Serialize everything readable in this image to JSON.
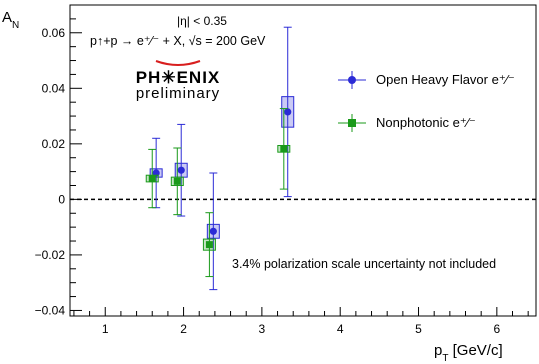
{
  "chart_data": {
    "type": "scatter",
    "title": "",
    "xlabel": "p_T [GeV/c]",
    "ylabel": "A_N",
    "xlim": [
      0.55,
      6.5
    ],
    "ylim": [
      -0.042,
      0.07
    ],
    "xticks": [
      1,
      2,
      3,
      4,
      5,
      6
    ],
    "yticks": [
      -0.04,
      -0.02,
      0,
      0.02,
      0.04,
      0.06
    ],
    "ytick_labels": [
      "−0.04",
      "−0.02",
      "0",
      "0.02",
      "0.04",
      "0.06"
    ],
    "reference_line": {
      "y": 0,
      "style": "dashed"
    },
    "grid": false,
    "legend_position": "top-right",
    "series": [
      {
        "name": "Open Heavy Flavor e⁺⁄⁻",
        "color": "#2b2bd6",
        "marker": "circle",
        "points": [
          {
            "x": 1.65,
            "y": 0.0095,
            "stat_err": 0.0125,
            "syst_err": 0.0015
          },
          {
            "x": 1.97,
            "y": 0.0105,
            "stat_err": 0.0165,
            "syst_err": 0.0025
          },
          {
            "x": 2.38,
            "y": -0.0115,
            "stat_err": 0.021,
            "syst_err": 0.0025
          },
          {
            "x": 3.33,
            "y": 0.0315,
            "stat_err": 0.0305,
            "syst_err": 0.0055
          }
        ]
      },
      {
        "name": "Nonphotonic e⁺⁄⁻",
        "color": "#1a9a1a",
        "marker": "square",
        "points": [
          {
            "x": 1.6,
            "y": 0.0075,
            "stat_err": 0.0105,
            "syst_err": 0.0012
          },
          {
            "x": 1.92,
            "y": 0.0065,
            "stat_err": 0.012,
            "syst_err": 0.0015
          },
          {
            "x": 2.33,
            "y": -0.0163,
            "stat_err": 0.0115,
            "syst_err": 0.002
          },
          {
            "x": 3.28,
            "y": 0.0182,
            "stat_err": 0.0145,
            "syst_err": 0.0012
          }
        ]
      }
    ]
  },
  "annotations": {
    "cut": "|η| < 0.35",
    "reaction": "p↑+p → e⁺⁄⁻ + X, √s = 200 GeV",
    "logo_text": "PH✳ENIX",
    "logo_sub": "preliminary",
    "scale_note": "3.4% polarization scale uncertainty not included"
  }
}
